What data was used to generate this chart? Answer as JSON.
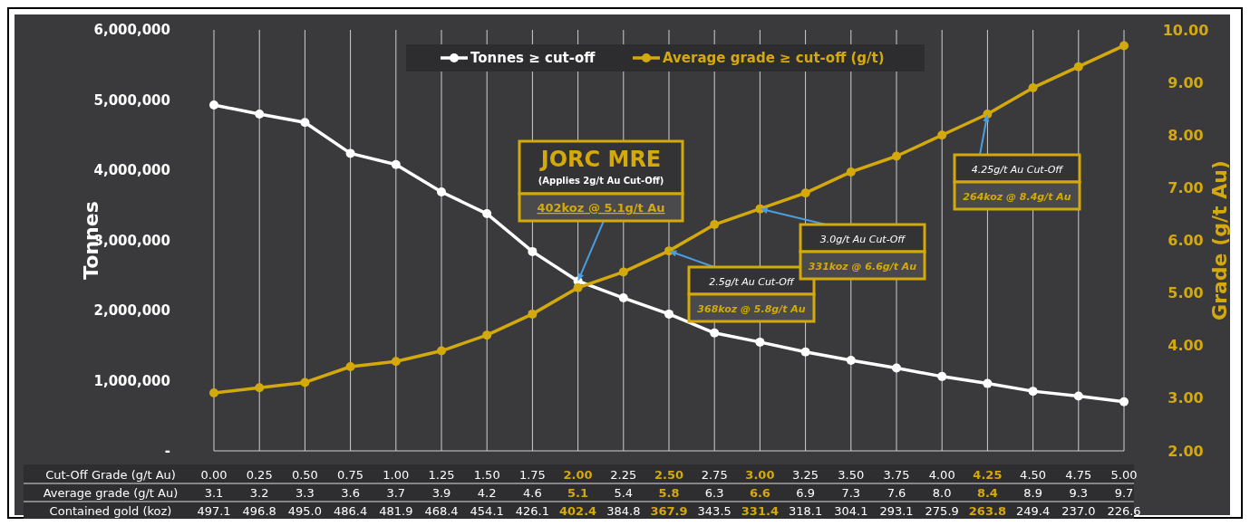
{
  "chart_data": {
    "type": "line",
    "xlabel": "Cut-Off Grade (g/t Au)",
    "ylabel": "Tonnes",
    "y2label": "Grade (g/t Au)",
    "categories": [
      "0.00",
      "0.25",
      "0.50",
      "0.75",
      "1.00",
      "1.25",
      "1.50",
      "1.75",
      "2.00",
      "2.25",
      "2.50",
      "2.75",
      "3.00",
      "3.25",
      "3.50",
      "3.75",
      "4.00",
      "4.25",
      "4.50",
      "4.75",
      "5.00"
    ],
    "series": [
      {
        "name": "Tonnes ≥ cut-off",
        "color": "#ffffff",
        "values": [
          4930000,
          4800000,
          4680000,
          4240000,
          4080000,
          3690000,
          3380000,
          2840000,
          2420000,
          2180000,
          1950000,
          1680000,
          1550000,
          1410000,
          1290000,
          1180000,
          1060000,
          960000,
          850000,
          780000,
          700000
        ]
      },
      {
        "name": "Average grade ≥ cut-off (g/t)",
        "color": "#d4a90c",
        "axis": "y2",
        "values": [
          3.1,
          3.2,
          3.3,
          3.6,
          3.7,
          3.9,
          4.2,
          4.6,
          5.1,
          5.4,
          5.8,
          6.3,
          6.6,
          6.9,
          7.3,
          7.6,
          8.0,
          8.4,
          8.9,
          9.3,
          9.7
        ],
        "value_labels": [
          "3.1",
          "3.2",
          "3.3",
          "3.6",
          "3.7",
          "3.9",
          "4.2",
          "4.6",
          "5.1",
          "5.4",
          "5.8",
          "6.3",
          "6.6",
          "6.9",
          "7.3",
          "7.6",
          "8.0",
          "8.4",
          "8.9",
          "9.3",
          "9.7"
        ]
      }
    ],
    "ylim": [
      0,
      6000000
    ],
    "yticks": [
      {
        "value": 0,
        "label": "-"
      },
      {
        "value": 1000000,
        "label": "1,000,000"
      },
      {
        "value": 2000000,
        "label": "2,000,000"
      },
      {
        "value": 3000000,
        "label": "3,000,000"
      },
      {
        "value": 4000000,
        "label": "4,000,000"
      },
      {
        "value": 5000000,
        "label": "5,000,000"
      },
      {
        "value": 6000000,
        "label": "6,000,000"
      }
    ],
    "y2lim": [
      2,
      10
    ],
    "y2ticks": [
      {
        "value": 2,
        "label": "2.00"
      },
      {
        "value": 3,
        "label": "3.00"
      },
      {
        "value": 4,
        "label": "4.00"
      },
      {
        "value": 5,
        "label": "5.00"
      },
      {
        "value": 6,
        "label": "6.00"
      },
      {
        "value": 7,
        "label": "7.00"
      },
      {
        "value": 8,
        "label": "8.00"
      },
      {
        "value": 9,
        "label": "9.00"
      },
      {
        "value": 10,
        "label": "10.00"
      }
    ],
    "annotations": [
      "JORC MRE",
      "(Applies 2g/t Au Cut-Off)",
      {
        "text": "402koz @ 5.1g/t Au",
        "x": "2.00",
        "y": 2420000
      },
      {
        "text": "2.5g/t Au Cut-Off",
        "x": "2.50",
        "y": 2850000
      },
      "368koz @ 5.8g/t Au",
      {
        "text": "3.0g/t Au Cut-Off",
        "x": "3.00",
        "y": 3450000
      },
      "331koz @ 6.6g/t Au",
      {
        "text": "4.25g/t Au Cut-Off",
        "x": "4.25",
        "y": 4800000
      },
      "264koz @ 8.4g/t Au",
      "Average grade (g/t Au)",
      "Contained gold (koz)",
      "497.1",
      "496.8",
      "495.0",
      "486.4",
      "481.9",
      "468.4",
      "454.1",
      "426.1",
      "402.4",
      "384.8",
      "367.9",
      "343.5",
      "331.4",
      "318.1",
      "304.1",
      "293.1",
      "275.9",
      "263.8",
      "249.4",
      "237.0",
      "226.6"
    ],
    "grid": "x",
    "legend": "top",
    "marker": "circle",
    "line_style": "solid"
  }
}
